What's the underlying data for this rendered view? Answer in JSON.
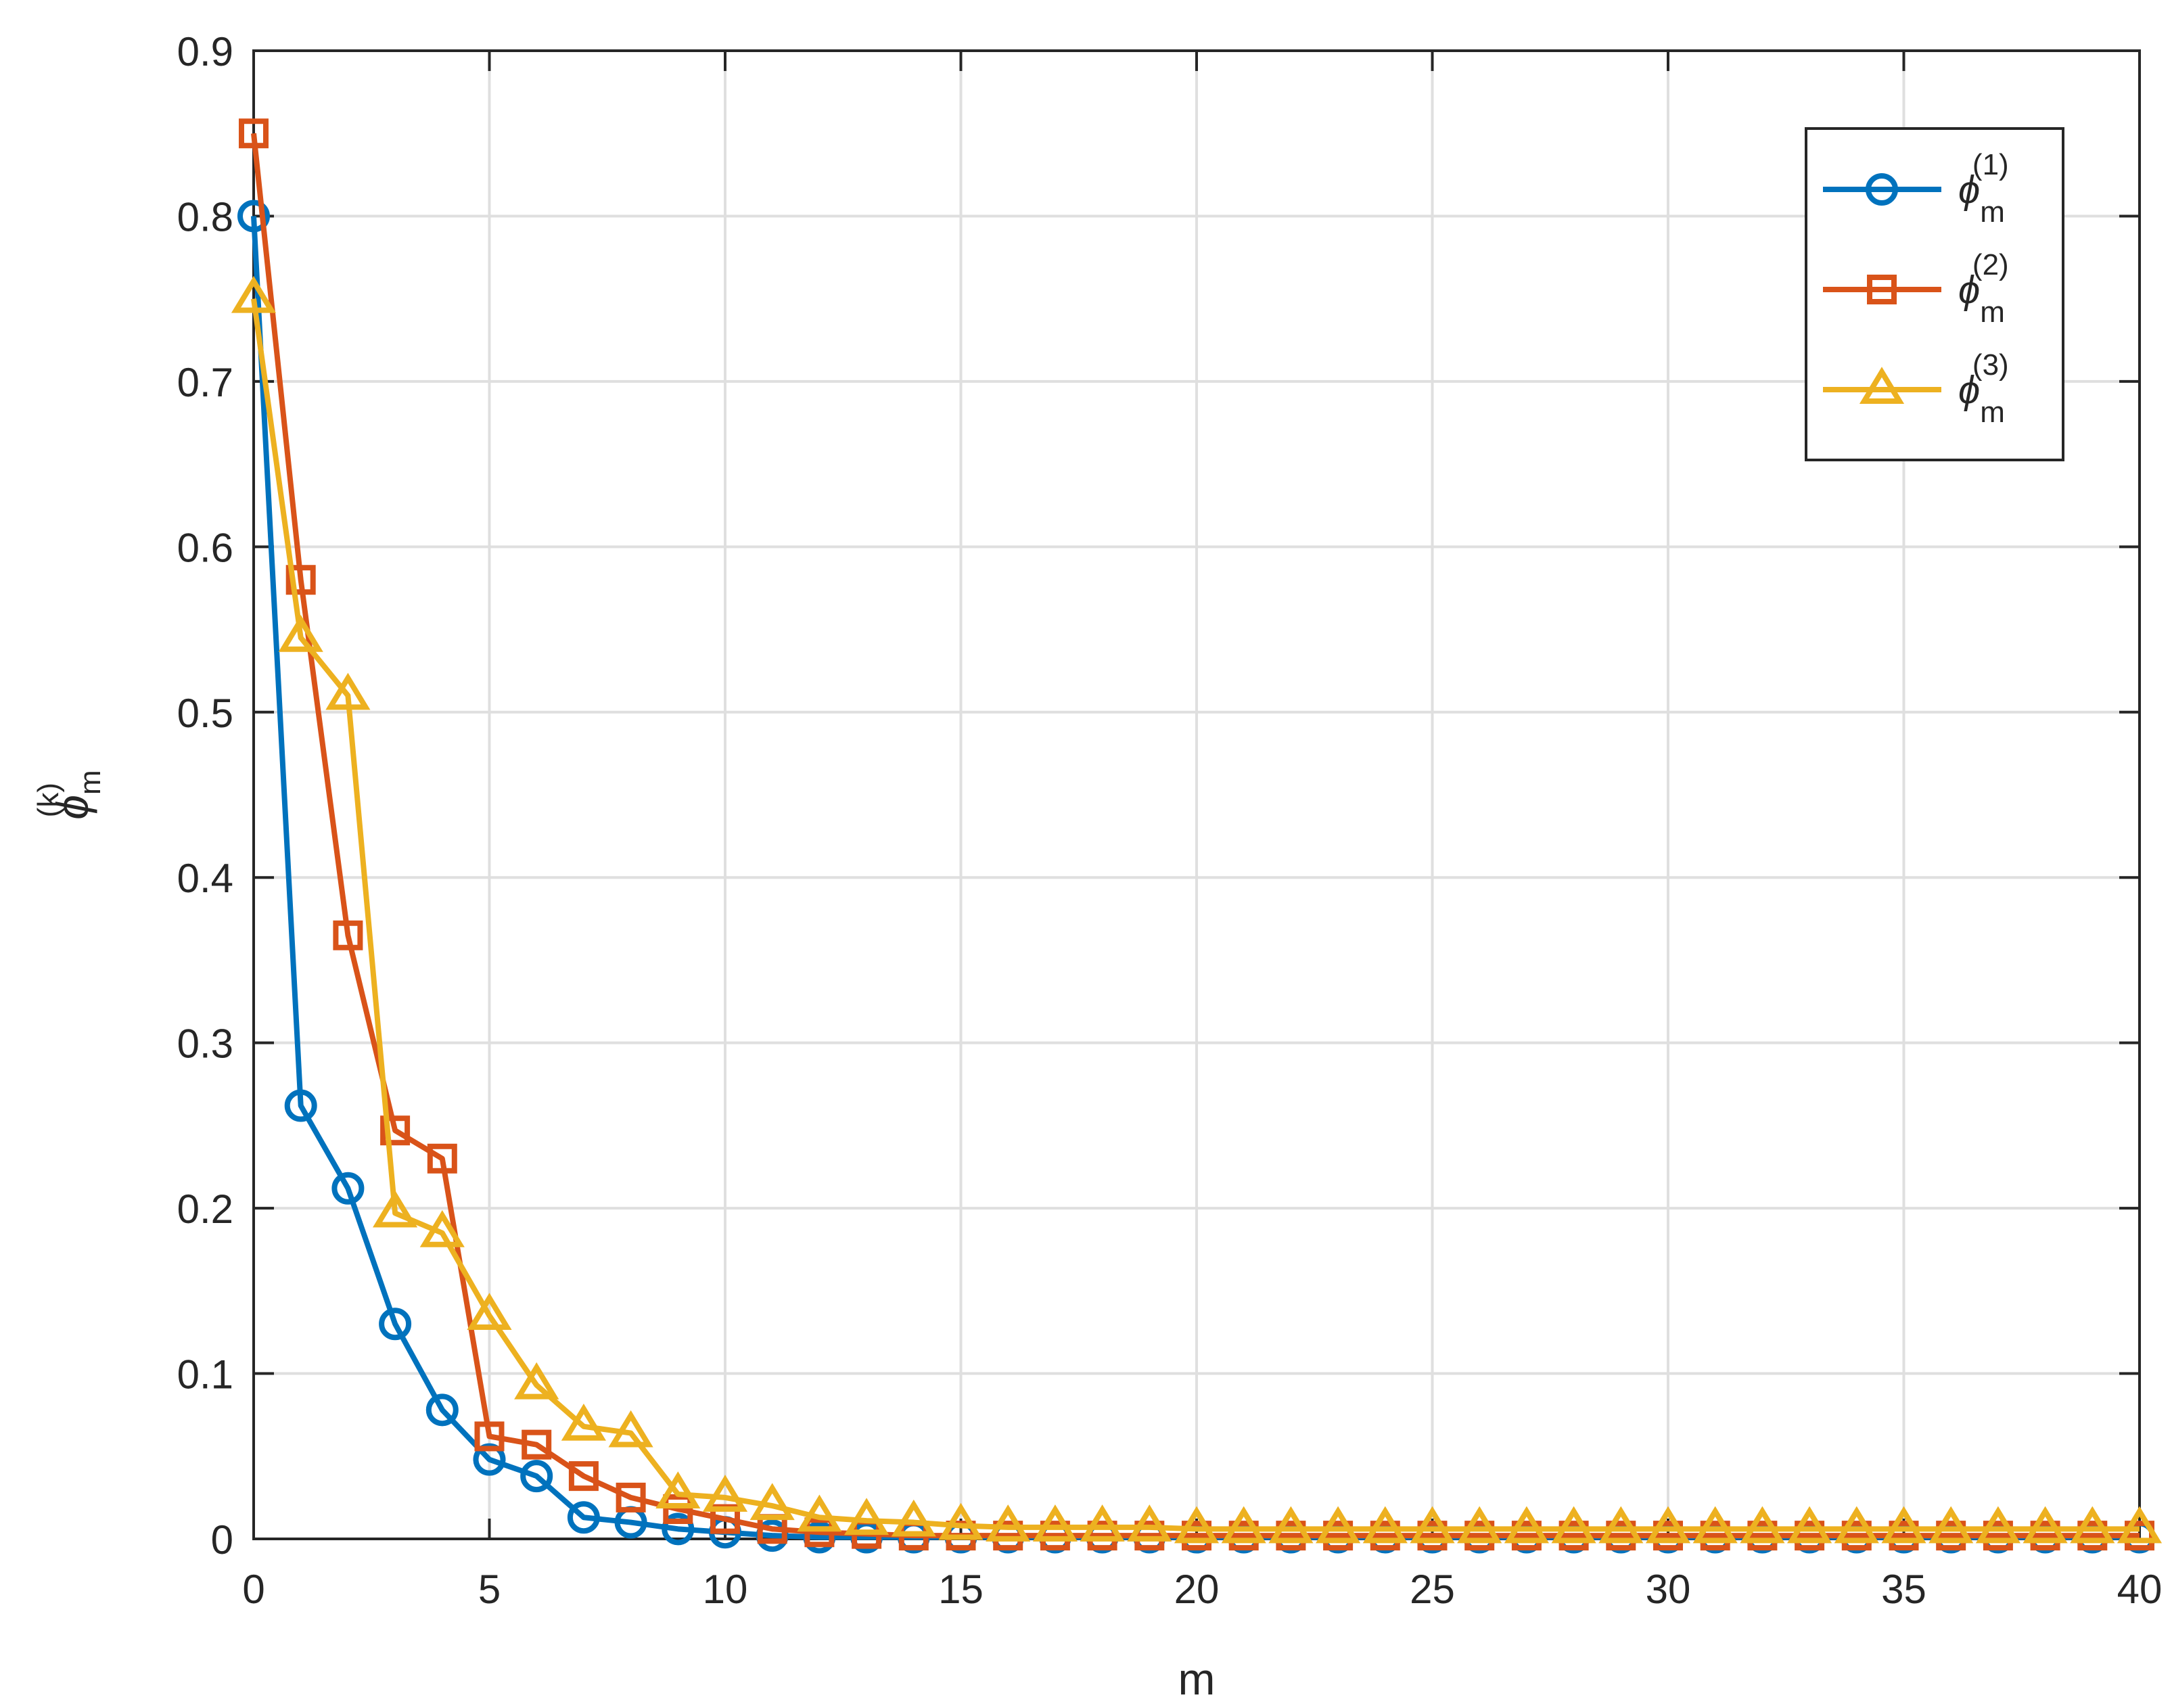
{
  "chart_data": {
    "type": "line",
    "title": "",
    "xlabel": "m",
    "ylabel": {
      "symbol": "ϕ",
      "sub": "m",
      "sup": "(k)"
    },
    "xlim": [
      0,
      40
    ],
    "ylim": [
      0,
      0.9
    ],
    "x_ticks": [
      0,
      5,
      10,
      15,
      20,
      25,
      30,
      35,
      40
    ],
    "x_tick_labels": [
      "0",
      "5",
      "10",
      "15",
      "20",
      "25",
      "30",
      "35",
      "40"
    ],
    "y_ticks": [
      0,
      0.1,
      0.2,
      0.3,
      0.4,
      0.5,
      0.6,
      0.7,
      0.8,
      0.9
    ],
    "y_tick_labels": [
      "0",
      "0.1",
      "0.2",
      "0.3",
      "0.4",
      "0.5",
      "0.6",
      "0.7",
      "0.8",
      "0.9"
    ],
    "grid": true,
    "legend_position": "top-right",
    "x": [
      0,
      1,
      2,
      3,
      4,
      5,
      6,
      7,
      8,
      9,
      10,
      11,
      12,
      13,
      14,
      15,
      16,
      17,
      18,
      19,
      20,
      21,
      22,
      23,
      24,
      25,
      26,
      27,
      28,
      29,
      30,
      31,
      32,
      33,
      34,
      35,
      36,
      37,
      38,
      39,
      40
    ],
    "series": [
      {
        "name": "ϕm(1)",
        "legend": {
          "symbol": "ϕ",
          "sub": "m",
          "sup": "(1)"
        },
        "color": "#0072BD",
        "marker": "circle",
        "values": [
          0.8,
          0.262,
          0.212,
          0.13,
          0.078,
          0.048,
          0.038,
          0.013,
          0.01,
          0.006,
          0.004,
          0.002,
          0.001,
          0.001,
          0.001,
          0.001,
          0.001,
          0.001,
          0.001,
          0.001,
          0.001,
          0.001,
          0.001,
          0.001,
          0.001,
          0.001,
          0.001,
          0.001,
          0.001,
          0.001,
          0.001,
          0.001,
          0.001,
          0.001,
          0.001,
          0.001,
          0.001,
          0.001,
          0.001,
          0.001,
          0.001
        ]
      },
      {
        "name": "ϕm(2)",
        "legend": {
          "symbol": "ϕ",
          "sub": "m",
          "sup": "(2)"
        },
        "color": "#D95319",
        "marker": "square",
        "values": [
          0.85,
          0.58,
          0.365,
          0.247,
          0.23,
          0.062,
          0.057,
          0.038,
          0.025,
          0.018,
          0.012,
          0.006,
          0.004,
          0.003,
          0.002,
          0.002,
          0.002,
          0.002,
          0.002,
          0.002,
          0.002,
          0.002,
          0.002,
          0.002,
          0.002,
          0.002,
          0.002,
          0.002,
          0.002,
          0.002,
          0.002,
          0.002,
          0.002,
          0.002,
          0.002,
          0.002,
          0.002,
          0.002,
          0.002,
          0.002,
          0.002
        ]
      },
      {
        "name": "ϕm(3)",
        "legend": {
          "symbol": "ϕ",
          "sub": "m",
          "sup": "(3)"
        },
        "color": "#EDB120",
        "marker": "triangle",
        "values": [
          0.75,
          0.545,
          0.51,
          0.197,
          0.185,
          0.135,
          0.093,
          0.068,
          0.064,
          0.027,
          0.025,
          0.02,
          0.013,
          0.011,
          0.01,
          0.008,
          0.007,
          0.007,
          0.007,
          0.007,
          0.006,
          0.006,
          0.006,
          0.006,
          0.006,
          0.006,
          0.006,
          0.006,
          0.006,
          0.006,
          0.006,
          0.006,
          0.006,
          0.006,
          0.006,
          0.006,
          0.006,
          0.006,
          0.006,
          0.006,
          0.006
        ]
      }
    ]
  }
}
